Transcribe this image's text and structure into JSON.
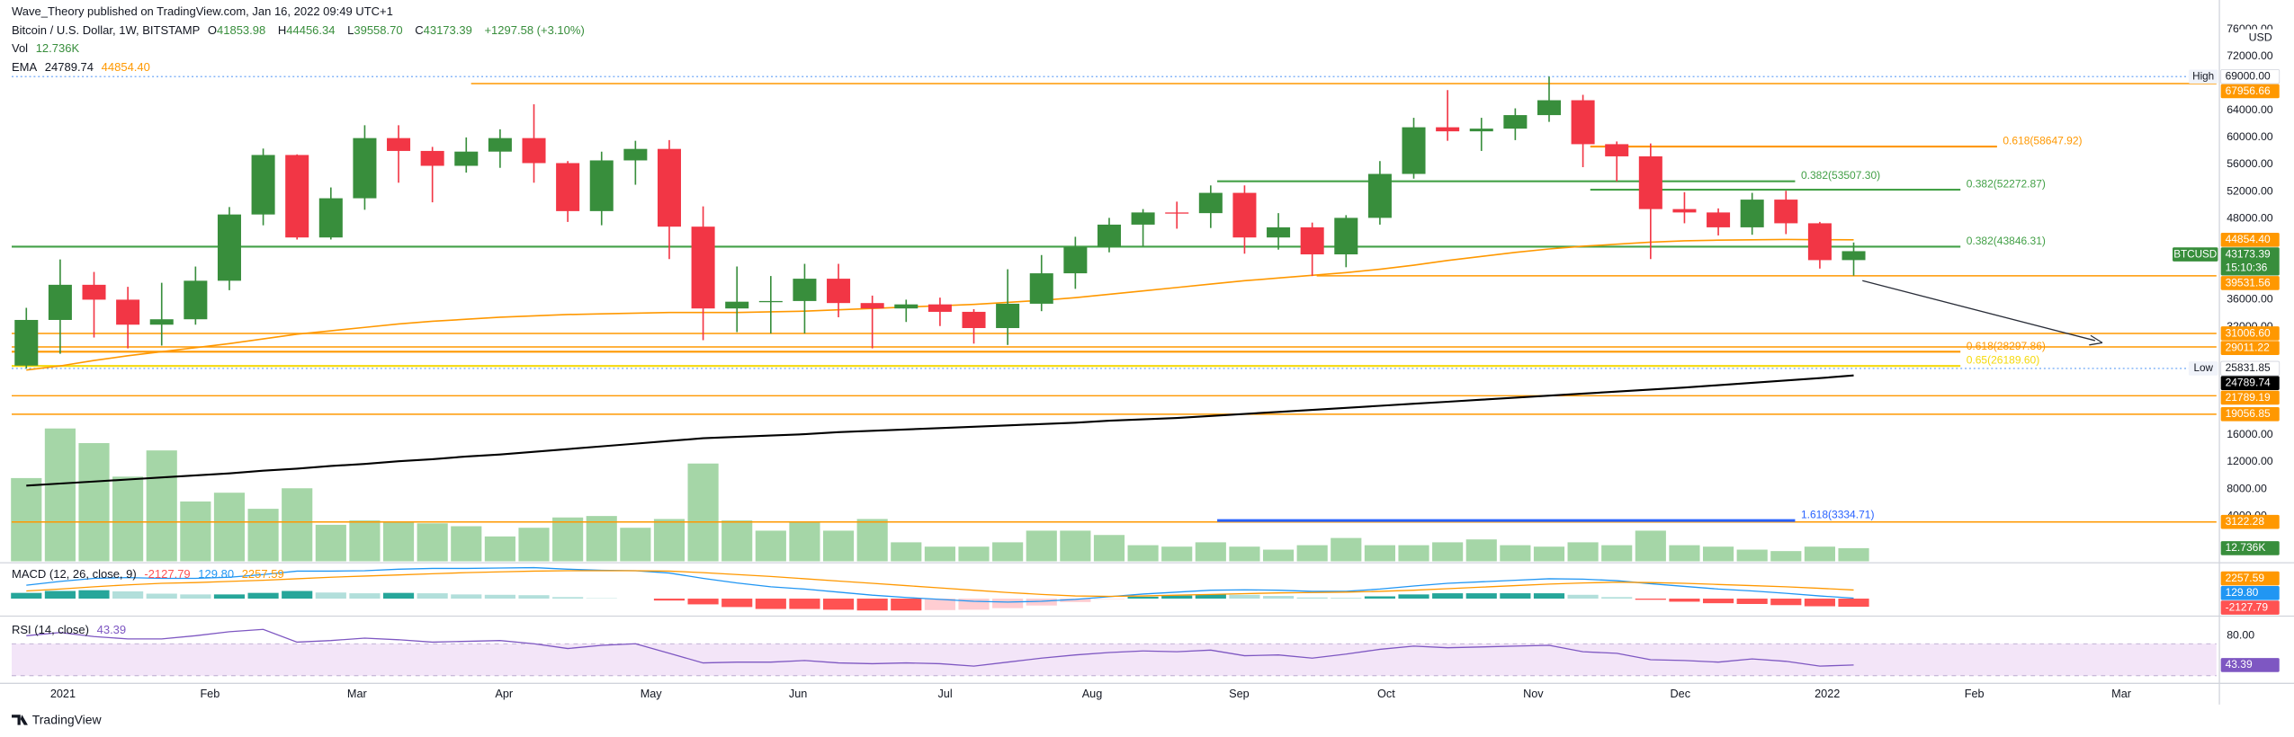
{
  "header": {
    "published": "Wave_Theory published on TradingView.com, Jan 16, 2022 09:49 UTC+1",
    "symbol": "Bitcoin / U.S. Dollar, 1W, BITSTAMP",
    "ohlc": [
      {
        "key": "O",
        "value": "41853.98"
      },
      {
        "key": "H",
        "value": "44456.34"
      },
      {
        "key": "L",
        "value": "39558.70"
      },
      {
        "key": "C",
        "value": "43173.39"
      }
    ],
    "change": "+1297.58 (+3.10%)"
  },
  "currency": "USD",
  "footer": "TradingView",
  "chart_data": {
    "type": "candlestick",
    "ylim": [
      -2700,
      77730
    ],
    "yticks": [
      {
        "value": 76000,
        "label": "76000.00"
      },
      {
        "value": 72000,
        "label": "72000.00"
      },
      {
        "value": 64000,
        "label": "64000.00"
      },
      {
        "value": 60000,
        "label": "60000.00"
      },
      {
        "value": 56000,
        "label": "56000.00"
      },
      {
        "value": 52000,
        "label": "52000.00"
      },
      {
        "value": 48000,
        "label": "48000.00"
      },
      {
        "value": 36000,
        "label": "36000.00"
      },
      {
        "value": 32000,
        "label": "32000.00"
      },
      {
        "value": 16000,
        "label": "16000.00"
      },
      {
        "value": 12000,
        "label": "12000.00"
      },
      {
        "value": 8000,
        "label": "8000.00"
      },
      {
        "value": 4000,
        "label": "4000.00"
      }
    ],
    "xticks": [
      "2021",
      "Feb",
      "Mar",
      "Apr",
      "May",
      "Jun",
      "Jul",
      "Aug",
      "Sep",
      "Oct",
      "Nov",
      "Dec",
      "2022",
      "Feb",
      "Mar"
    ],
    "candles": {
      "up_color": "#388e3c",
      "down_color": "#f23645",
      "open": [
        26250,
        33000,
        38200,
        36000,
        32300,
        33100,
        38800,
        48600,
        57400,
        45200,
        51000,
        59900,
        58000,
        55800,
        57900,
        59900,
        56200,
        49100,
        56600,
        58300,
        46800,
        34700,
        35700,
        35800,
        39100,
        35500,
        34700,
        35300,
        34200,
        31800,
        35400,
        39900,
        43800,
        47100,
        48900,
        48800,
        51800,
        45200,
        46700,
        42700,
        48100,
        54600,
        61500,
        60900,
        61300,
        63300,
        65500,
        59000,
        57200,
        49400,
        48900,
        46700,
        50800,
        47300,
        41853.98
      ],
      "high": [
        34800,
        41950,
        40100,
        37900,
        38500,
        40900,
        49700,
        58350,
        57500,
        52600,
        61800,
        61800,
        58600,
        60000,
        61200,
        64900,
        56500,
        57900,
        59500,
        59600,
        49800,
        40900,
        39500,
        41300,
        41300,
        36600,
        36000,
        36300,
        34600,
        40500,
        42600,
        45300,
        48100,
        49400,
        50500,
        52900,
        52900,
        48800,
        47400,
        48500,
        56500,
        62900,
        67000,
        62900,
        64300,
        69000,
        66300,
        59400,
        59100,
        51900,
        49500,
        51800,
        52100,
        47500,
        44456.34
      ],
      "low": [
        25831.85,
        28000,
        30400,
        28800,
        29200,
        32300,
        37400,
        47000,
        44900,
        44900,
        49300,
        53300,
        50400,
        54800,
        55500,
        53300,
        47500,
        47000,
        53000,
        42000,
        30000,
        31200,
        31000,
        31000,
        33400,
        28800,
        32700,
        32100,
        29500,
        29300,
        34300,
        37600,
        43000,
        43900,
        46500,
        46600,
        42800,
        43400,
        39500,
        40800,
        47100,
        53900,
        59500,
        58000,
        59600,
        62300,
        55600,
        53500,
        42000,
        47300,
        45500,
        45600,
        45700,
        40600,
        39558.7
      ],
      "close": [
        33000,
        38200,
        36000,
        32300,
        33100,
        38800,
        48600,
        57400,
        45200,
        51000,
        59900,
        58000,
        55800,
        57900,
        59900,
        56200,
        49100,
        56600,
        58300,
        46800,
        34700,
        35700,
        35800,
        39100,
        35500,
        34700,
        35300,
        34200,
        31800,
        35400,
        39900,
        43800,
        47100,
        48900,
        48800,
        51800,
        45200,
        46700,
        42700,
        48100,
        54600,
        61500,
        60900,
        61300,
        63300,
        65500,
        59000,
        57200,
        49400,
        48900,
        46700,
        50800,
        47300,
        41850,
        43173.39
      ]
    },
    "symbol_tag": "BTCUSD",
    "countdown": "15:10:36",
    "high_low": [
      {
        "tag": "High",
        "value": 69000,
        "label": "69000.00"
      },
      {
        "tag": "Low",
        "value": 25831.85,
        "label": "25831.85"
      }
    ],
    "levels": [
      {
        "value": 67956.66,
        "label": "67956.66",
        "color": "#ff9800"
      },
      {
        "value": 39531.56,
        "label": "39531.56",
        "color": "#ff9800"
      },
      {
        "value": 31006.6,
        "label": "31006.60",
        "color": "#ff9800"
      },
      {
        "value": 29011.22,
        "label": "29011.22",
        "color": "#ff9800"
      },
      {
        "value": 21789.19,
        "label": "21789.19",
        "color": "#ff9800"
      },
      {
        "value": 19056.85,
        "label": "19056.85",
        "color": "#ff9800"
      },
      {
        "value": 3122.28,
        "label": "3122.28",
        "color": "#ff9800"
      }
    ],
    "fibs": [
      {
        "value": 53507.3,
        "label": "0.382(53507.30)",
        "color": "#43a047"
      },
      {
        "value": 52272.87,
        "label": "0.382(52272.87)",
        "color": "#43a047"
      },
      {
        "value": 43846.31,
        "label": "0.382(43846.31)",
        "color": "#43a047"
      },
      {
        "value": 58647.92,
        "label": "0.618(58647.92)",
        "color": "#ff9800"
      },
      {
        "value": 28297.86,
        "label": "0.618(28297.86)",
        "color": "#ff9800"
      },
      {
        "value": 26189.6,
        "label": "0.65(26189.60)",
        "color": "#f5d90a"
      },
      {
        "value": 3334.71,
        "label": "1.618(3334.71)",
        "color": "#2962ff"
      }
    ],
    "volume": {
      "name": "Vol",
      "color": "#a5d6a7",
      "label_color": "#388e3c",
      "ylim": [
        0,
        180000
      ],
      "last_label": "12.736K",
      "values": [
        80700,
        128800,
        114600,
        82100,
        107500,
        58000,
        66500,
        50900,
        70800,
        35400,
        39600,
        38200,
        36800,
        34000,
        24100,
        32500,
        42500,
        43900,
        32500,
        41000,
        94800,
        39600,
        29700,
        38200,
        29700,
        41000,
        18400,
        14200,
        14200,
        18400,
        29700,
        29700,
        25500,
        15600,
        14200,
        18400,
        14200,
        11300,
        15600,
        22600,
        15600,
        15600,
        18400,
        21200,
        15600,
        14200,
        18400,
        15600,
        29700,
        15600,
        14200,
        11300,
        9900,
        14200,
        12736
      ]
    },
    "ema": {
      "name": "EMA",
      "series": [
        {
          "color": "#000000",
          "label_color": "#131722",
          "last_label": "24789.74",
          "values": [
            8500,
            8800,
            9100,
            9400,
            9700,
            10000,
            10300,
            10700,
            11000,
            11400,
            11700,
            12100,
            12400,
            12800,
            13100,
            13500,
            13900,
            14300,
            14700,
            15100,
            15500,
            15700,
            15900,
            16100,
            16400,
            16600,
            16800,
            17000,
            17200,
            17400,
            17600,
            17800,
            18100,
            18300,
            18500,
            18800,
            19100,
            19400,
            19700,
            20000,
            20300,
            20600,
            20900,
            21200,
            21500,
            21800,
            22100,
            22400,
            22700,
            23000,
            23350,
            23700,
            24050,
            24400,
            24789.74
          ]
        },
        {
          "color": "#ff9800",
          "label_color": "#ff9800",
          "last_label": "44854.40",
          "values": [
            25600,
            26200,
            27000,
            27700,
            28300,
            28900,
            29500,
            30200,
            30900,
            31400,
            31900,
            32400,
            32800,
            33100,
            33400,
            33600,
            33800,
            33900,
            34000,
            34100,
            34100,
            34100,
            34200,
            34300,
            34500,
            34700,
            34900,
            35100,
            35300,
            35600,
            35900,
            36300,
            36800,
            37300,
            37800,
            38300,
            38800,
            39200,
            39600,
            40000,
            40500,
            41100,
            41800,
            42400,
            43000,
            43500,
            43900,
            44200,
            44500,
            44700,
            44800,
            44850,
            44900,
            44870,
            44854.4
          ]
        }
      ]
    },
    "macd": {
      "name": "MACD (12, 26, close, 9)",
      "ylim": [
        -4000,
        9000
      ],
      "hist": {
        "colors": [
          "#26a69a",
          "#b2dfdb",
          "#ffcdd2",
          "#ff5252"
        ],
        "values": [
          1500,
          2000,
          2200,
          1900,
          1300,
          1100,
          1100,
          1500,
          2000,
          1600,
          1400,
          1500,
          1400,
          1100,
          1000,
          900,
          400,
          100,
          0,
          -500,
          -1500,
          -2200,
          -2700,
          -2700,
          -2900,
          -3100,
          -3100,
          -3000,
          -2900,
          -2500,
          -1800,
          -900,
          -100,
          500,
          800,
          1100,
          1000,
          700,
          300,
          200,
          600,
          1100,
          1400,
          1400,
          1400,
          1400,
          1000,
          400,
          -300,
          -800,
          -1200,
          -1400,
          -1700,
          -2000,
          -2127.79
        ]
      },
      "macd": {
        "color": "#2196f3",
        "last_label": "129.80",
        "values": [
          3500,
          4500,
          5300,
          5500,
          5300,
          5300,
          5600,
          6300,
          7200,
          7200,
          7300,
          7700,
          7900,
          7900,
          8000,
          8100,
          7700,
          7400,
          7300,
          6700,
          5300,
          4100,
          3100,
          2500,
          1700,
          900,
          300,
          -200,
          -700,
          -900,
          -700,
          -200,
          500,
          1200,
          1700,
          2200,
          2300,
          2200,
          1900,
          1900,
          2500,
          3300,
          4000,
          4400,
          4800,
          5200,
          5100,
          4700,
          3900,
          3200,
          2500,
          2000,
          1400,
          700,
          129.8
        ]
      },
      "signal": {
        "color": "#ff9800",
        "values": [
          2000,
          2500,
          3100,
          3600,
          4000,
          4200,
          4500,
          4800,
          5200,
          5600,
          5900,
          6200,
          6500,
          6800,
          7000,
          7200,
          7300,
          7300,
          7300,
          7200,
          6800,
          6300,
          5800,
          5200,
          4600,
          4000,
          3400,
          2800,
          2200,
          1600,
          1100,
          700,
          600,
          700,
          900,
          1100,
          1300,
          1500,
          1600,
          1700,
          1900,
          2200,
          2600,
          3000,
          3400,
          3800,
          4100,
          4300,
          4200,
          4000,
          3700,
          3400,
          3100,
          2700,
          2257.59
        ]
      }
    },
    "rsi": {
      "name": "RSI (14, close)",
      "color": "#7e57c2",
      "band_color": "#f3e5f8",
      "ylim": [
        25,
        100
      ],
      "band": [
        30,
        70
      ],
      "yticks": [
        {
          "value": 80,
          "label": "80.00"
        }
      ],
      "values": [
        80,
        84,
        79,
        76,
        76,
        80,
        85,
        88,
        72,
        74,
        77,
        75,
        72,
        73,
        74,
        70,
        64,
        68,
        70,
        58,
        46,
        47,
        47,
        49,
        46,
        45,
        46,
        45,
        42,
        47,
        52,
        56,
        59,
        61,
        60,
        62,
        55,
        56,
        52,
        57,
        63,
        67,
        65,
        66,
        67,
        68,
        60,
        58,
        50,
        49,
        47,
        51,
        48,
        42,
        43.39
      ]
    }
  }
}
